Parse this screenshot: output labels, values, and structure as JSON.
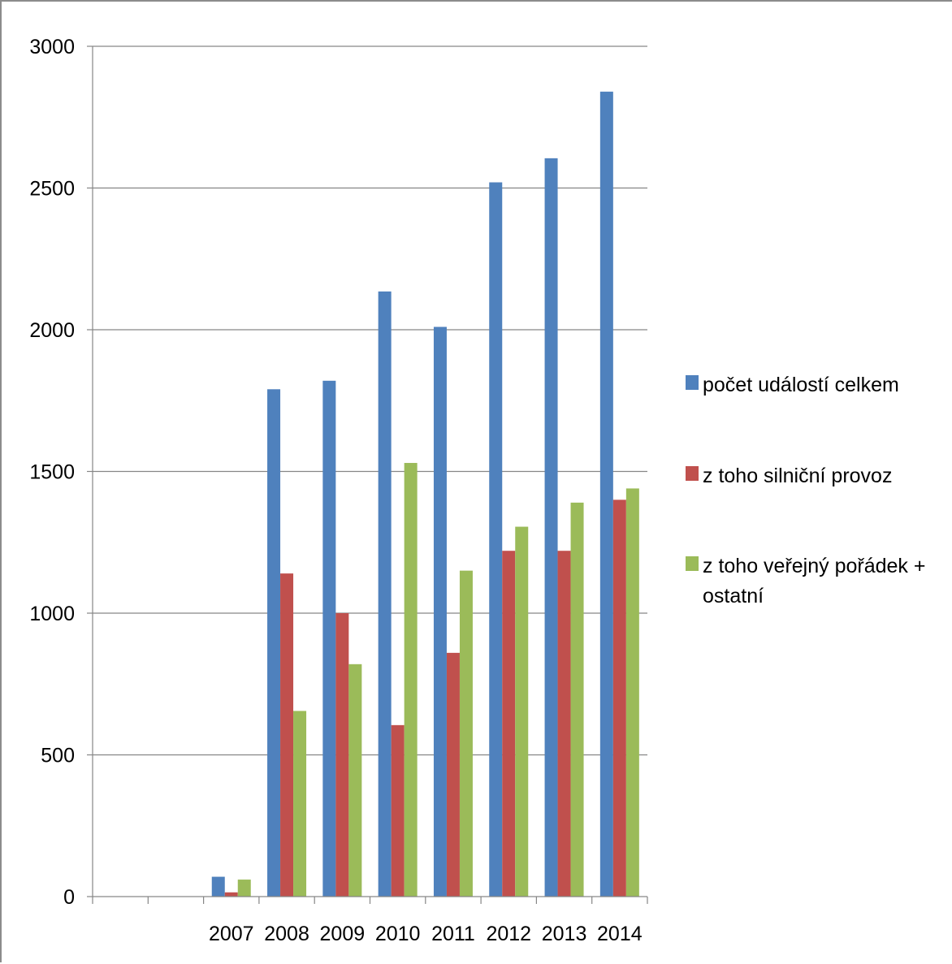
{
  "chart_data": {
    "type": "bar",
    "title": "",
    "xlabel": "",
    "ylabel": "",
    "categories": [
      "",
      "",
      "2007",
      "2008",
      "2009",
      "2010",
      "2011",
      "2012",
      "2013",
      "2014"
    ],
    "ylim": [
      0,
      3000
    ],
    "yticks": [
      0,
      500,
      1000,
      1500,
      2000,
      2500,
      3000
    ],
    "grid": true,
    "legend_position": "right",
    "series": [
      {
        "name": "počet událostí celkem",
        "color": "#4f81bd",
        "values": [
          null,
          null,
          70,
          1790,
          1820,
          2135,
          2010,
          2520,
          2605,
          2840
        ]
      },
      {
        "name": "z toho silniční provoz",
        "color": "#c0504d",
        "values": [
          null,
          null,
          15,
          1140,
          1000,
          605,
          860,
          1220,
          1220,
          1400
        ]
      },
      {
        "name": "z toho veřejný pořádek + ostatní",
        "color": "#9bbb59",
        "values": [
          null,
          null,
          60,
          655,
          820,
          1530,
          1150,
          1305,
          1390,
          1440
        ]
      }
    ]
  }
}
